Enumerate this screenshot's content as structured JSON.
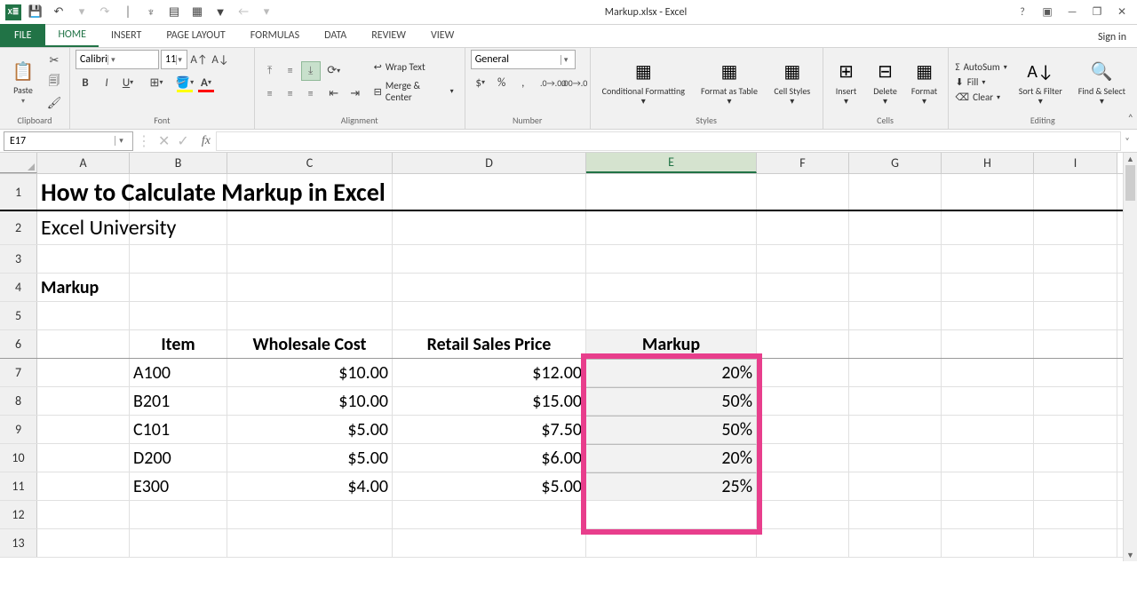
{
  "app": {
    "title": "Markup.xlsx - Excel",
    "signin": "Sign in"
  },
  "qat": {
    "save": "💾",
    "undo": "↶",
    "redo": "↷"
  },
  "tabs": {
    "file": "FILE",
    "items": [
      "HOME",
      "INSERT",
      "PAGE LAYOUT",
      "FORMULAS",
      "DATA",
      "REVIEW",
      "VIEW"
    ],
    "active": 0
  },
  "ribbon": {
    "clipboard": {
      "label": "Clipboard",
      "paste": "Paste"
    },
    "font": {
      "label": "Font",
      "name": "Calibri",
      "size": "11"
    },
    "alignment": {
      "label": "Alignment",
      "wrap": "Wrap Text",
      "merge": "Merge & Center"
    },
    "number": {
      "label": "Number",
      "format": "General"
    },
    "styles": {
      "label": "Styles",
      "cond": "Conditional Formatting",
      "table": "Format as Table",
      "cell": "Cell Styles"
    },
    "cells": {
      "label": "Cells",
      "insert": "Insert",
      "delete": "Delete",
      "format": "Format"
    },
    "editing": {
      "label": "Editing",
      "sum": "AutoSum",
      "fill": "Fill",
      "clear": "Clear",
      "sort": "Sort & Filter",
      "find": "Find & Select"
    }
  },
  "namebox": "E17",
  "sheet": {
    "cols": [
      "A",
      "B",
      "C",
      "D",
      "E",
      "F",
      "G",
      "H",
      "I"
    ],
    "title": "How to Calculate Markup in Excel",
    "subtitle": "Excel University",
    "section": "Markup",
    "headers": {
      "item": "Item",
      "wholesale": "Wholesale Cost",
      "retail": "Retail Sales Price",
      "markup": "Markup"
    },
    "rows": [
      {
        "item": "A100",
        "wholesale": "$10.00",
        "retail": "$12.00",
        "markup": "20%"
      },
      {
        "item": "B201",
        "wholesale": "$10.00",
        "retail": "$15.00",
        "markup": "50%"
      },
      {
        "item": "C101",
        "wholesale": "$5.00",
        "retail": "$7.50",
        "markup": "50%"
      },
      {
        "item": "D200",
        "wholesale": "$5.00",
        "retail": "$6.00",
        "markup": "20%"
      },
      {
        "item": "E300",
        "wholesale": "$4.00",
        "retail": "$5.00",
        "markup": "25%"
      }
    ]
  },
  "colors": {
    "excel_green": "#217346",
    "highlight": "#e83e8c",
    "markup_fill": "#f2f2f2"
  }
}
